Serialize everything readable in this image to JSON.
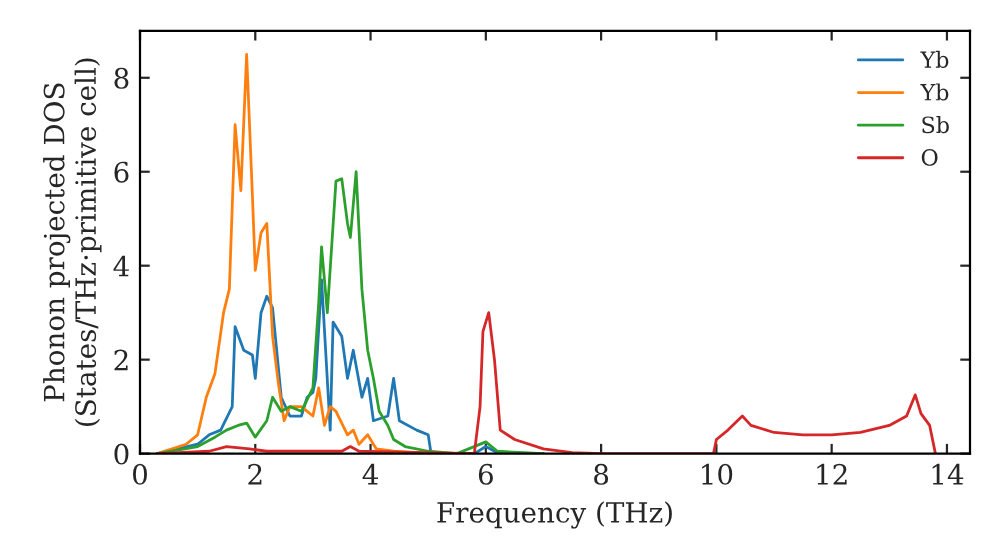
{
  "chart_data": {
    "type": "line",
    "xlabel": "Frequency (THz)",
    "ylabel": "Phonon projected DOS\n(States/THz·primitive cell)",
    "xlim": [
      0,
      14.4
    ],
    "ylim": [
      0,
      9
    ],
    "xticks": [
      0,
      2,
      4,
      6,
      8,
      10,
      12,
      14
    ],
    "yticks": [
      0,
      2,
      4,
      6,
      8
    ],
    "grid": false,
    "legend": "top right",
    "series": [
      {
        "name": "Yb",
        "color": "#1f77b4",
        "x": [
          0.3,
          1.0,
          1.2,
          1.4,
          1.6,
          1.65,
          1.8,
          1.95,
          2.0,
          2.1,
          2.2,
          2.3,
          2.45,
          2.6,
          2.8,
          2.9,
          3.0,
          3.05,
          3.15,
          3.3,
          3.35,
          3.5,
          3.6,
          3.7,
          3.85,
          3.95,
          4.05,
          4.3,
          4.4,
          4.5,
          4.8,
          5.0,
          5.05,
          5.8,
          6.0,
          6.2,
          7.0
        ],
        "values": [
          0,
          0.2,
          0.4,
          0.5,
          1.0,
          2.7,
          2.2,
          2.1,
          1.6,
          3.0,
          3.35,
          3.1,
          1.2,
          0.8,
          0.8,
          1.2,
          1.3,
          1.6,
          3.7,
          0.5,
          2.8,
          2.5,
          1.6,
          2.2,
          1.2,
          1.6,
          0.7,
          0.8,
          1.6,
          0.7,
          0.5,
          0.4,
          0,
          0,
          0.15,
          0.02,
          0
        ]
      },
      {
        "name": "Yb",
        "color": "#ff7f0e",
        "x": [
          0.3,
          0.8,
          1.0,
          1.15,
          1.3,
          1.45,
          1.55,
          1.65,
          1.75,
          1.85,
          1.95,
          2.0,
          2.1,
          2.2,
          2.3,
          2.4,
          2.5,
          2.6,
          2.8,
          3.0,
          3.1,
          3.2,
          3.3,
          3.4,
          3.6,
          3.7,
          3.8,
          3.95,
          4.1,
          4.4,
          5.0
        ],
        "values": [
          0,
          0.2,
          0.4,
          1.2,
          1.7,
          3.0,
          3.5,
          7.0,
          5.6,
          8.5,
          5.5,
          3.9,
          4.7,
          4.9,
          2.5,
          1.5,
          0.7,
          1.0,
          1.0,
          0.8,
          1.4,
          0.6,
          1.0,
          0.9,
          0.4,
          0.5,
          0.2,
          0.4,
          0.1,
          0.05,
          0
        ]
      },
      {
        "name": "Sb",
        "color": "#2ca02c",
        "x": [
          0.3,
          1.0,
          1.3,
          1.5,
          1.7,
          1.85,
          2.0,
          2.2,
          2.3,
          2.45,
          2.6,
          2.8,
          3.0,
          3.1,
          3.15,
          3.25,
          3.4,
          3.5,
          3.6,
          3.65,
          3.75,
          3.85,
          3.95,
          4.05,
          4.15,
          4.3,
          4.4,
          4.6,
          5.0,
          5.5,
          6.0,
          6.2,
          7.0
        ],
        "values": [
          0,
          0.15,
          0.35,
          0.5,
          0.6,
          0.65,
          0.35,
          0.7,
          1.2,
          0.9,
          1.0,
          0.9,
          1.4,
          3.2,
          4.4,
          3.0,
          5.8,
          5.85,
          4.9,
          4.6,
          6.0,
          3.5,
          2.2,
          1.6,
          0.9,
          0.6,
          0.3,
          0.15,
          0.05,
          0,
          0.25,
          0.05,
          0
        ]
      },
      {
        "name": "O",
        "color": "#d62728",
        "x": [
          0.3,
          1.2,
          1.5,
          1.9,
          2.2,
          3.5,
          3.65,
          3.8,
          5.8,
          5.9,
          5.95,
          6.05,
          6.15,
          6.25,
          6.5,
          7.0,
          7.5,
          8.0,
          9.95,
          10.0,
          10.2,
          10.45,
          10.6,
          11.0,
          11.5,
          12.0,
          12.5,
          13.0,
          13.3,
          13.45,
          13.55,
          13.7,
          13.8
        ],
        "values": [
          0,
          0.05,
          0.15,
          0.1,
          0.05,
          0.05,
          0.15,
          0.05,
          0,
          1.0,
          2.6,
          3.0,
          2.0,
          0.5,
          0.3,
          0.1,
          0.02,
          0,
          0,
          0.3,
          0.5,
          0.8,
          0.6,
          0.45,
          0.4,
          0.4,
          0.45,
          0.6,
          0.8,
          1.25,
          0.85,
          0.6,
          0
        ]
      }
    ]
  }
}
